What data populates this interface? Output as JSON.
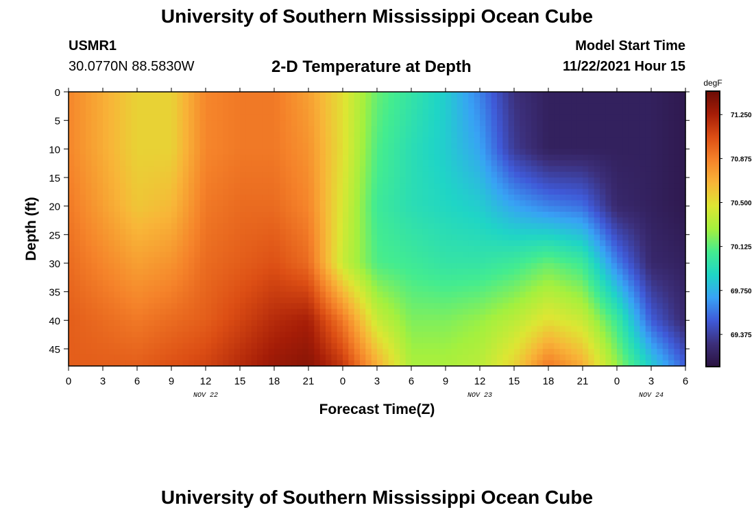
{
  "header": {
    "title": "University of Southern Mississippi Ocean Cube",
    "station": "USMR1",
    "coords": "30.0770N  88.5830W",
    "subtitle": "2-D Temperature at Depth",
    "model_label": "Model Start Time",
    "model_time": "11/22/2021 Hour 15"
  },
  "footer_title": "University of Southern Mississippi Ocean Cube",
  "chart_data": {
    "type": "heatmap",
    "title": "2-D Temperature at Depth",
    "xlabel": "Forecast Time(Z)",
    "ylabel": "Depth (ft)",
    "x_hours": [
      0,
      3,
      6,
      9,
      12,
      15,
      18,
      21,
      24,
      27,
      30,
      33,
      36,
      39,
      42,
      45,
      48,
      51,
      54
    ],
    "x_tick_labels": [
      "0",
      "3",
      "6",
      "9",
      "12",
      "15",
      "18",
      "21",
      "0",
      "3",
      "6",
      "9",
      "12",
      "15",
      "18",
      "21",
      "0",
      "3",
      "6"
    ],
    "xlim": [
      0,
      54
    ],
    "date_labels": [
      {
        "hour": 12,
        "text": "NOV 22"
      },
      {
        "hour": 36,
        "text": "NOV 23"
      },
      {
        "hour": 51,
        "text": "NOV 24"
      }
    ],
    "y_ticks": [
      0,
      5,
      10,
      15,
      20,
      25,
      30,
      35,
      40,
      45
    ],
    "ylim": [
      0,
      48
    ],
    "colorbar": {
      "unit": "degF",
      "min": 69.1,
      "max": 71.45,
      "ticks": [
        69.375,
        69.75,
        70.125,
        70.5,
        70.875,
        71.25
      ],
      "tick_labels": [
        "69.375",
        "69.750",
        "70.125",
        "70.500",
        "70.875",
        "71.250"
      ],
      "colors": [
        "#2a1240",
        "#3c2f7a",
        "#3f5ad8",
        "#38a2f5",
        "#1fd5c6",
        "#44ec8f",
        "#a4f03e",
        "#dde633",
        "#f8b538",
        "#f5832a",
        "#dc4e14",
        "#a61d07",
        "#6a0c05"
      ]
    },
    "grid": {
      "depths": [
        0,
        10,
        20,
        30,
        40,
        48
      ],
      "hours": [
        0,
        3,
        6,
        9,
        12,
        15,
        18,
        21,
        24,
        27,
        30,
        33,
        36,
        39,
        42,
        45,
        48,
        51,
        54
      ],
      "temps": [
        [
          70.85,
          70.7,
          70.55,
          70.55,
          70.85,
          70.9,
          70.9,
          70.75,
          70.5,
          70.15,
          70.0,
          69.85,
          69.6,
          69.3,
          69.2,
          69.2,
          69.2,
          69.2,
          69.15
        ],
        [
          70.85,
          70.7,
          70.55,
          70.55,
          70.85,
          70.9,
          70.9,
          70.8,
          70.5,
          70.1,
          69.95,
          69.85,
          69.7,
          69.35,
          69.2,
          69.2,
          69.2,
          69.2,
          69.15
        ],
        [
          70.9,
          70.75,
          70.6,
          70.65,
          70.9,
          70.95,
          70.95,
          70.85,
          70.45,
          70.05,
          69.95,
          69.9,
          69.85,
          69.7,
          69.6,
          69.55,
          69.25,
          69.2,
          69.15
        ],
        [
          70.95,
          70.85,
          70.75,
          70.8,
          70.95,
          71.0,
          71.05,
          70.95,
          70.4,
          70.1,
          70.05,
          70.0,
          70.0,
          70.05,
          70.15,
          70.05,
          69.6,
          69.25,
          69.2
        ],
        [
          71.0,
          70.95,
          70.9,
          70.95,
          71.0,
          71.1,
          71.2,
          71.25,
          70.9,
          70.4,
          70.2,
          70.2,
          70.25,
          70.35,
          70.5,
          70.4,
          70.05,
          69.5,
          69.25
        ],
        [
          71.0,
          71.0,
          71.0,
          71.05,
          71.1,
          71.2,
          71.3,
          71.35,
          71.15,
          70.7,
          70.3,
          70.3,
          70.35,
          70.55,
          70.9,
          70.7,
          70.25,
          69.85,
          69.5
        ]
      ]
    }
  }
}
